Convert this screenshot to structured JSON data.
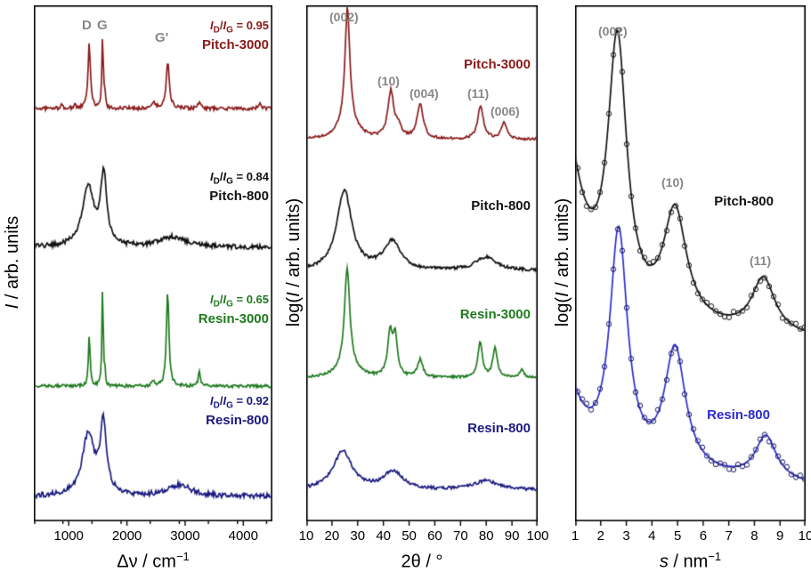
{
  "shared": {
    "I": "I",
    "D": "D",
    "G": "G",
    "slash": "/",
    "gray": "#888888"
  },
  "chart_data": [
    {
      "id": "raman-spectra",
      "type": "line",
      "ylabel_pre": "",
      "ylabel_i": "I",
      "ylabel_post": " / arb. units",
      "xlabel_i": "",
      "xlabel_main": "Δν / cm",
      "xlabel_sup": "−1",
      "xlim": [
        400,
        4500
      ],
      "xticks": [
        1000,
        2000,
        3000,
        4000
      ],
      "minor_tick_step": 500,
      "grid": false,
      "peak_labels": [
        {
          "text": "D",
          "x": 1355
        },
        {
          "text": "G",
          "x": 1583
        },
        {
          "text": "G'",
          "x": 2705
        }
      ],
      "series": [
        {
          "name": "Pitch-3000",
          "ratio": " = 0.95",
          "color": "#8b1a1a",
          "base": 0.8,
          "noise": 0.0035,
          "peaks": [
            [
              870,
              0.006,
              25
            ],
            [
              1105,
              0.01,
              14
            ],
            [
              1352,
              0.125,
              25
            ],
            [
              1582,
              0.14,
              14
            ],
            [
              1620,
              0.028,
              11
            ],
            [
              2452,
              0.012,
              35
            ],
            [
              2702,
              0.092,
              32
            ],
            [
              3242,
              0.014,
              22
            ],
            [
              4290,
              0.009,
              30
            ]
          ]
        },
        {
          "name": "Pitch-800",
          "ratio": " = 0.84",
          "color": "#111111",
          "base": 0.531,
          "noise": 0.0045,
          "peaks": [
            [
              1335,
              0.115,
              120
            ],
            [
              1600,
              0.135,
              62
            ],
            [
              2800,
              0.02,
              260
            ]
          ]
        },
        {
          "name": "Resin-3000",
          "ratio": " = 0.65",
          "color": "#1f7a1f",
          "base": 0.262,
          "noise": 0.003,
          "peaks": [
            [
              1352,
              0.098,
              18
            ],
            [
              1582,
              0.195,
              13
            ],
            [
              1620,
              0.025,
              10
            ],
            [
              2452,
              0.008,
              30
            ],
            [
              2700,
              0.185,
              26
            ],
            [
              3242,
              0.028,
              20
            ]
          ]
        },
        {
          "name": "Resin-800",
          "ratio": " = 0.92",
          "color": "#1a1a80",
          "base": 0.048,
          "noise": 0.005,
          "peaks": [
            [
              1335,
              0.118,
              125
            ],
            [
              1595,
              0.135,
              65
            ],
            [
              2900,
              0.022,
              240
            ]
          ]
        }
      ]
    },
    {
      "id": "xrd-patterns",
      "type": "line",
      "ylabel_pre": "log(",
      "ylabel_i": "I",
      "ylabel_post": " / arb. units)",
      "xlabel_i": "",
      "xlabel_main": "2θ / °",
      "xlabel_sup": "",
      "xlim": [
        10,
        100
      ],
      "xticks": [
        10,
        20,
        30,
        40,
        50,
        60,
        70,
        80,
        90,
        100
      ],
      "minor_tick_step": null,
      "grid": false,
      "peak_labels": [
        {
          "text": "(002)",
          "x": 26
        },
        {
          "text": "(10)",
          "x": 43
        },
        {
          "text": "(004)",
          "x": 54
        },
        {
          "text": "(11)",
          "x": 78
        },
        {
          "text": "(006)",
          "x": 87
        }
      ],
      "series": [
        {
          "name": "Pitch-3000",
          "color": "#8b1a1a",
          "base": 0.74,
          "noise": 0.0025,
          "peaks": [
            [
              26.0,
              0.22,
              1.1
            ],
            [
              26.3,
              0.035,
              4.0
            ],
            [
              42.9,
              0.09,
              1.4
            ],
            [
              45.8,
              0.02,
              1.2
            ],
            [
              54.3,
              0.068,
              1.4
            ],
            [
              77.8,
              0.065,
              1.3
            ],
            [
              86.9,
              0.032,
              1.3
            ]
          ]
        },
        {
          "name": "Pitch-800",
          "color": "#111111",
          "base": 0.485,
          "noise": 0.003,
          "peaks": [
            [
              24.8,
              0.155,
              3.5
            ],
            [
              43.4,
              0.055,
              4.0
            ],
            [
              80.0,
              0.026,
              5.0
            ]
          ]
        },
        {
          "name": "Resin-3000",
          "color": "#1f7a1f",
          "base": 0.278,
          "noise": 0.0025,
          "peaks": [
            [
              25.9,
              0.19,
              1.2
            ],
            [
              26.2,
              0.025,
              4.0
            ],
            [
              42.6,
              0.082,
              1.1
            ],
            [
              44.6,
              0.075,
              1.0
            ],
            [
              54.3,
              0.034,
              1.2
            ],
            [
              77.6,
              0.07,
              1.0
            ],
            [
              83.4,
              0.058,
              1.0
            ],
            [
              93.8,
              0.014,
              1.0
            ]
          ]
        },
        {
          "name": "Resin-800",
          "color": "#1a1a80",
          "base": 0.06,
          "noise": 0.003,
          "peaks": [
            [
              24.2,
              0.075,
              4.5
            ],
            [
              43.8,
              0.035,
              4.5
            ],
            [
              80.0,
              0.018,
              6.0
            ]
          ]
        }
      ]
    },
    {
      "id": "scattering-s-curves",
      "type": "line",
      "ylabel_pre": "log(",
      "ylabel_i": "I",
      "ylabel_post": " / arb. units)",
      "xlabel_i": "s",
      "xlabel_main": " / nm",
      "xlabel_sup": "−1",
      "xlim": [
        1,
        10
      ],
      "xticks": [
        1,
        2,
        3,
        4,
        5,
        6,
        7,
        8,
        9,
        10
      ],
      "minor_tick_step": null,
      "grid": false,
      "peak_labels": [
        {
          "text": "(002)",
          "x": 2.65
        },
        {
          "text": "(10)",
          "x": 4.9
        },
        {
          "text": "(11)",
          "x": 8.35
        }
      ],
      "series": [
        {
          "name": "Pitch-800",
          "color": "#111111",
          "marker_color": "#111111",
          "base": 0.39,
          "slope": -0.004,
          "leftdecay": [
            0.28,
            0.8
          ],
          "noise": 0,
          "peaks": [
            [
              2.65,
              0.52,
              0.45
            ],
            [
              4.9,
              0.215,
              0.55
            ],
            [
              8.35,
              0.105,
              0.55
            ]
          ],
          "markers": true
        },
        {
          "name": "Resin-800",
          "color": "#2b2bd0",
          "marker_color": "#14145e",
          "base": 0.105,
          "slope": -0.004,
          "leftdecay": [
            0.13,
            0.7
          ],
          "noise": 0,
          "peaks": [
            [
              2.7,
              0.45,
              0.42
            ],
            [
              4.9,
              0.235,
              0.5
            ],
            [
              8.45,
              0.085,
              0.5
            ]
          ],
          "markers": true
        }
      ]
    }
  ]
}
